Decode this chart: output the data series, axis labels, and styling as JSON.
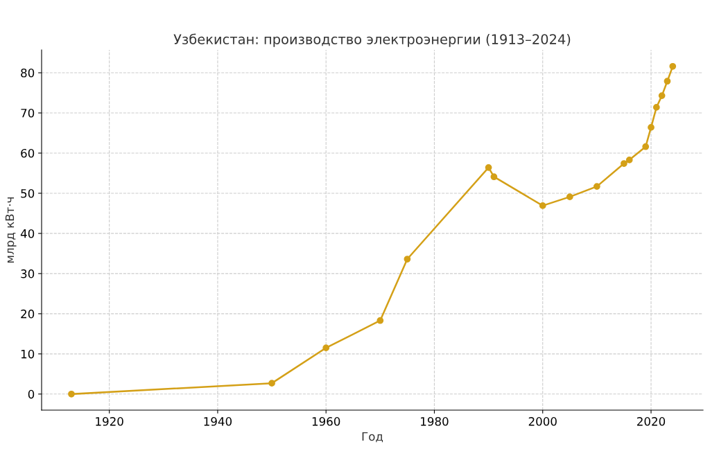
{
  "chart_data": {
    "type": "line",
    "title": "Узбекистан: производство электроэнергии (1913–2024)",
    "xlabel": "Год",
    "ylabel": "млрд кВт·ч",
    "x": [
      1913,
      1950,
      1960,
      1970,
      1975,
      1990,
      1991,
      2000,
      2005,
      2010,
      2015,
      2016,
      2019,
      2020,
      2021,
      2022,
      2023,
      2024
    ],
    "series": [
      {
        "color": "#d4a017",
        "values": [
          0,
          2.7,
          11.5,
          18.3,
          33.6,
          56.4,
          54.1,
          46.9,
          49.1,
          51.7,
          57.4,
          58.3,
          61.6,
          66.4,
          71.4,
          74.3,
          77.9,
          81.6
        ]
      }
    ],
    "xlim": [
      1907.5,
      2029.6
    ],
    "xticks": [
      1920,
      1940,
      1960,
      1980,
      2000,
      2020
    ],
    "ylim": [
      -4,
      85.7
    ],
    "yticks": [
      0,
      10,
      20,
      30,
      40,
      50,
      60,
      70,
      80
    ],
    "grid": true,
    "marker": "circle",
    "line_style": "solid",
    "legend": false
  }
}
